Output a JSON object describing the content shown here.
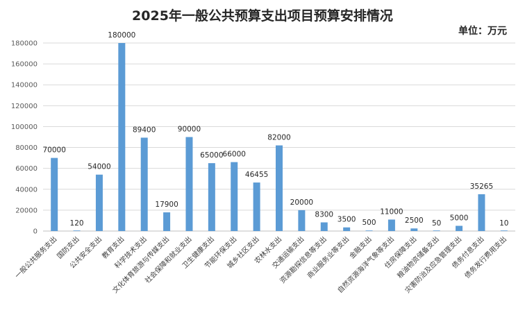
{
  "chart_data": {
    "type": "bar",
    "title": "2025年一般公共预算支出项目预算安排情况",
    "unit_label": "单位：万元",
    "xlabel": "",
    "ylabel": "",
    "ylim": [
      0,
      180000
    ],
    "y_ticks": [
      0,
      20000,
      40000,
      60000,
      80000,
      100000,
      120000,
      140000,
      160000,
      180000
    ],
    "grid": "horizontal",
    "bar_color": "#5b9bd5",
    "categories": [
      "一般公共服务支出",
      "国防支出",
      "公共安全支出",
      "教育支出",
      "科学技术支出",
      "文化体育旅游与传媒支出",
      "社会保障和就业支出",
      "卫生健康支出",
      "节能环保支出",
      "城乡社区支出",
      "农林水支出",
      "交通运输支出",
      "资源勘探信息等支出",
      "商业服务业等支出",
      "金融支出",
      "自然资源海洋气象等支出",
      "住房保障支出",
      "粮油物资储备支出",
      "灾害防治及应急管理支出",
      "债务付息支出",
      "债务发行费用支出"
    ],
    "values": [
      70000,
      120,
      54000,
      180000,
      89400,
      17900,
      90000,
      65000,
      66000,
      46455,
      82000,
      20000,
      8300,
      3500,
      500,
      11000,
      2500,
      50,
      5000,
      35265,
      10
    ]
  }
}
